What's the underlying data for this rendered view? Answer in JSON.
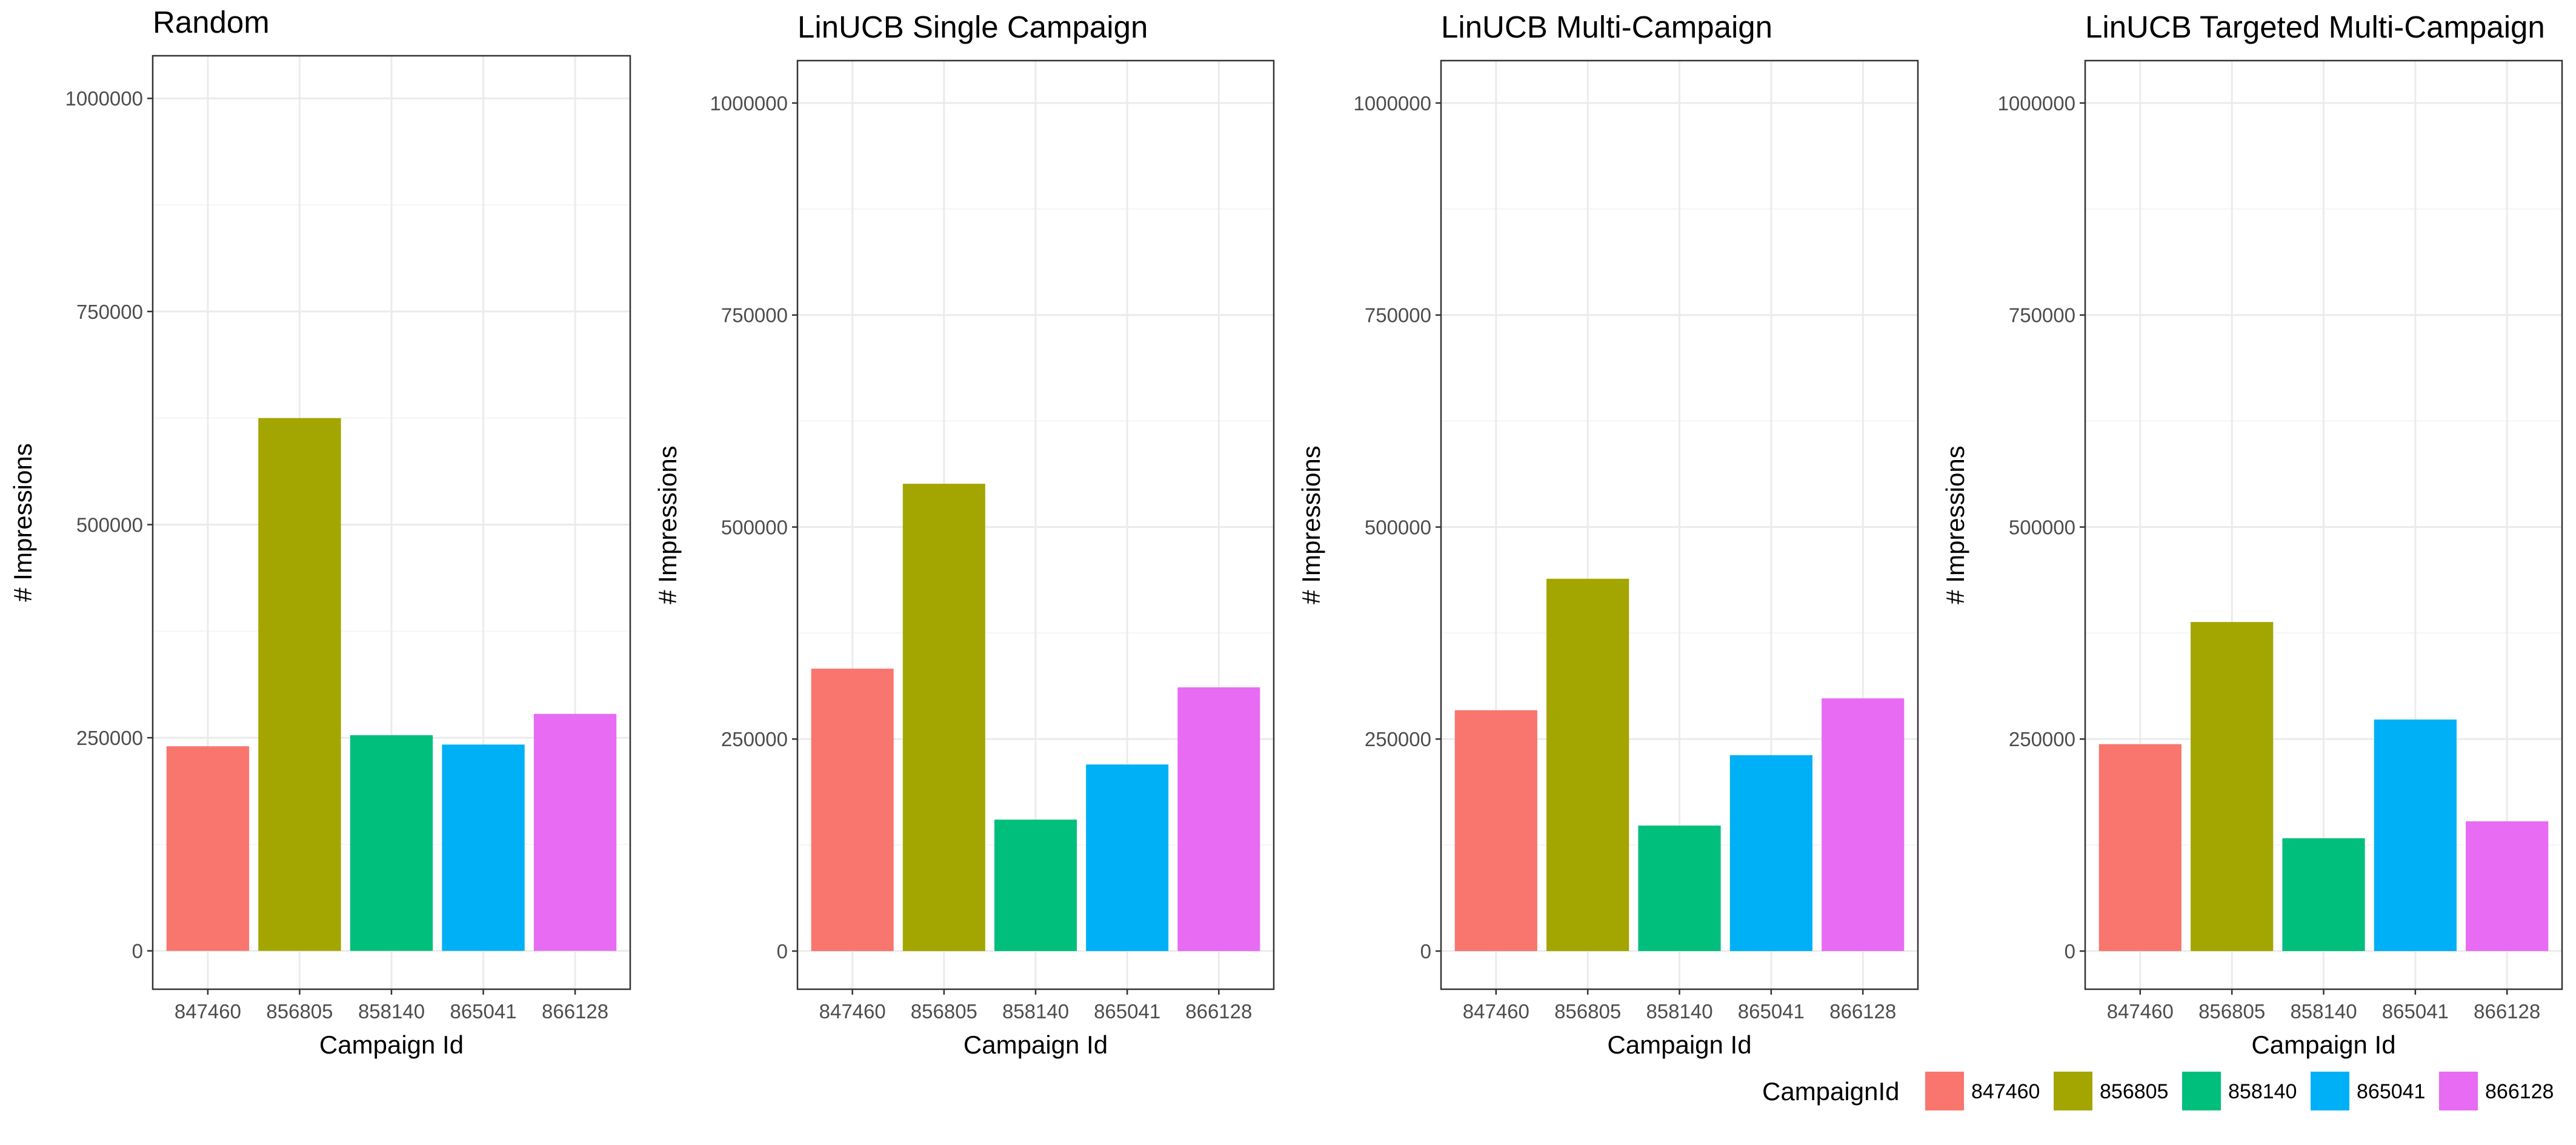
{
  "chart_data": [
    {
      "type": "bar",
      "title": "Random",
      "xlabel": "Campaign Id",
      "ylabel": "# Impressions",
      "categories": [
        "847460",
        "856805",
        "858140",
        "865041",
        "866128"
      ],
      "values": [
        240000,
        625000,
        253000,
        242000,
        278000
      ],
      "ylim": [
        -45000,
        1050000
      ],
      "yticks": [
        0,
        250000,
        500000,
        750000,
        1000000
      ],
      "ytick_labels": [
        "0",
        "250000",
        "500000",
        "750000",
        "1000000"
      ],
      "grid": true
    },
    {
      "type": "bar",
      "title": "LinUCB Single Campaign",
      "xlabel": "Campaign Id",
      "ylabel": "# Impressions",
      "categories": [
        "847460",
        "856805",
        "858140",
        "865041",
        "866128"
      ],
      "values": [
        333000,
        551000,
        155000,
        220000,
        311000
      ],
      "ylim": [
        -45000,
        1050000
      ],
      "yticks": [
        0,
        250000,
        500000,
        750000,
        1000000
      ],
      "ytick_labels": [
        "0",
        "250000",
        "500000",
        "750000",
        "1000000"
      ],
      "grid": true
    },
    {
      "type": "bar",
      "title": "LinUCB Multi-Campaign",
      "xlabel": "Campaign Id",
      "ylabel": "# Impressions",
      "categories": [
        "847460",
        "856805",
        "858140",
        "865041",
        "866128"
      ],
      "values": [
        284000,
        439000,
        148000,
        231000,
        298000
      ],
      "ylim": [
        -45000,
        1050000
      ],
      "yticks": [
        0,
        250000,
        500000,
        750000,
        1000000
      ],
      "ytick_labels": [
        "0",
        "250000",
        "500000",
        "750000",
        "1000000"
      ],
      "grid": true
    },
    {
      "type": "bar",
      "title": "LinUCB Targeted Multi-Campaign",
      "xlabel": "Campaign Id",
      "ylabel": "# Impressions",
      "categories": [
        "847460",
        "856805",
        "858140",
        "865041",
        "866128"
      ],
      "values": [
        244000,
        388000,
        133000,
        273000,
        153000
      ],
      "ylim": [
        -45000,
        1050000
      ],
      "yticks": [
        0,
        250000,
        500000,
        750000,
        1000000
      ],
      "ytick_labels": [
        "0",
        "250000",
        "500000",
        "750000",
        "1000000"
      ],
      "grid": true
    }
  ],
  "legend": {
    "title": "CampaignId",
    "placement": "bottom-right",
    "entries": [
      "847460",
      "856805",
      "858140",
      "865041",
      "866128"
    ]
  },
  "colors": {
    "847460": "#F8766D",
    "856805": "#A3A500",
    "858140": "#00BF7D",
    "865041": "#00B0F6",
    "866128": "#E76BF3",
    "panel_border": "#333333",
    "grid_major": "#EBEBEB",
    "grid_minor": "#F5F5F5",
    "tick_text": "#4D4D4D",
    "text": "#000000"
  }
}
